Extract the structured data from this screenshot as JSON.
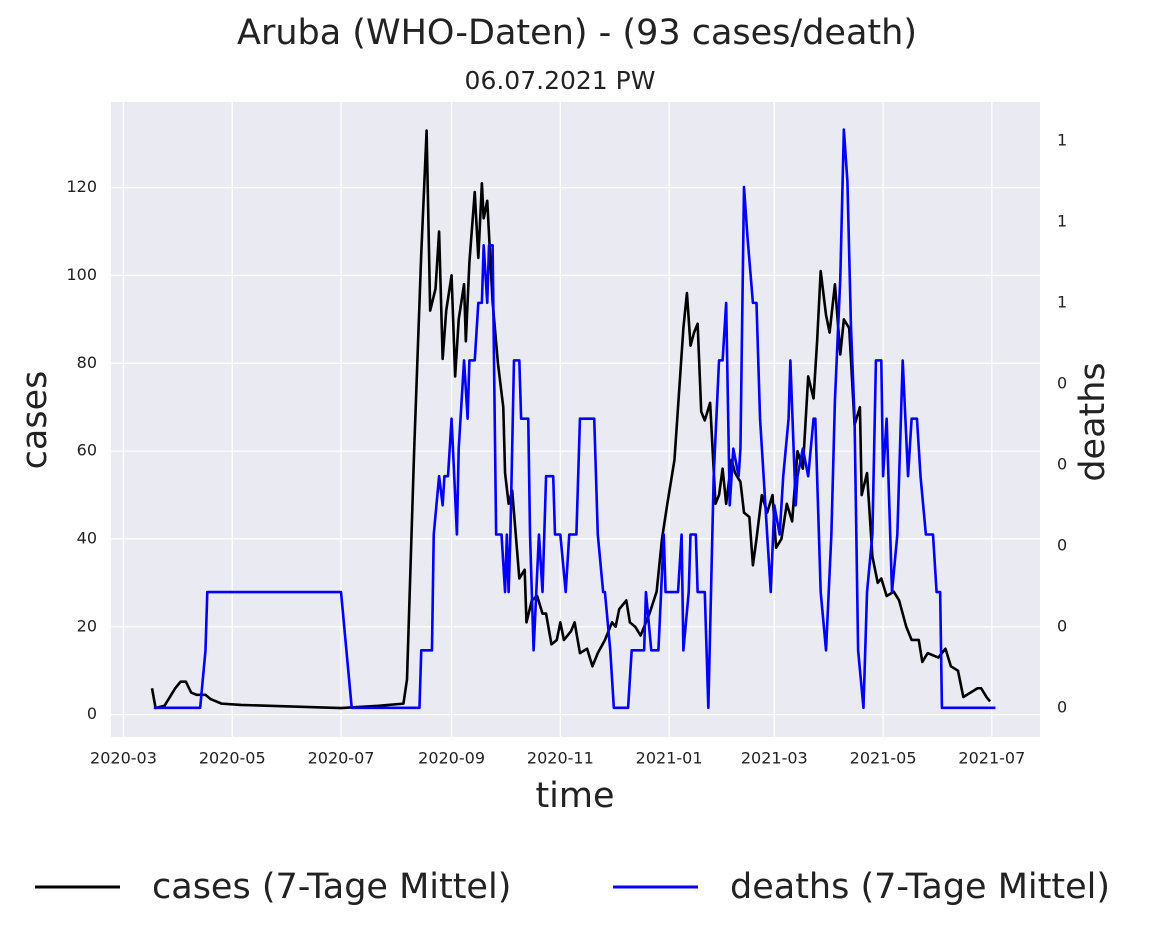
{
  "chart_data": {
    "type": "line",
    "title": "Aruba (WHO-Daten) - (93 cases/death)",
    "subtitle": "06.07.2021 PW",
    "x_label": "time",
    "y_label": "cases",
    "y2_label": "deaths",
    "y2_label_color": "#0000ff",
    "xlim": [
      "2020-02-23",
      "2021-07-28"
    ],
    "xticks": [
      {
        "value": "2020-03-01",
        "label": "2020-03"
      },
      {
        "value": "2020-05-01",
        "label": "2020-05"
      },
      {
        "value": "2020-07-01",
        "label": "2020-07"
      },
      {
        "value": "2020-09-01",
        "label": "2020-09"
      },
      {
        "value": "2020-11-01",
        "label": "2020-11"
      },
      {
        "value": "2021-01-01",
        "label": "2021-01"
      },
      {
        "value": "2021-03-01",
        "label": "2021-03"
      },
      {
        "value": "2021-05-01",
        "label": "2021-05"
      },
      {
        "value": "2021-07-01",
        "label": "2021-07"
      }
    ],
    "ylim": [
      -5.1,
      139.5
    ],
    "yticks": [
      0,
      20,
      40,
      60,
      80,
      100,
      120
    ],
    "y2lim": [
      -0.036,
      0.748
    ],
    "y2ticks": [
      0,
      {
        "value": 0.1,
        "label": "0"
      },
      {
        "value": 0.2,
        "label": "0"
      },
      {
        "value": 0.3,
        "label": "0"
      },
      {
        "value": 0.4,
        "label": "0"
      },
      {
        "value": 0.5,
        "label": "1"
      },
      {
        "value": 0.6,
        "label": "1"
      },
      {
        "value": 0.7,
        "label": "1"
      }
    ],
    "grid": true,
    "legend": "lower center",
    "series": [
      {
        "name": "cases (7-Tage Mittel)",
        "color": "#000000",
        "x": [
          "2020-03-17",
          "2020-03-19",
          "2020-03-24",
          "2020-03-27",
          "2020-03-30",
          "2020-04-02",
          "2020-04-05",
          "2020-04-08",
          "2020-04-11",
          "2020-04-16",
          "2020-04-19",
          "2020-04-25",
          "2020-05-06",
          "2020-07-01",
          "2020-07-22",
          "2020-08-05",
          "2020-08-07",
          "2020-08-11",
          "2020-08-15",
          "2020-08-18",
          "2020-08-20",
          "2020-08-23",
          "2020-08-25",
          "2020-08-27",
          "2020-08-29",
          "2020-09-01",
          "2020-09-03",
          "2020-09-05",
          "2020-09-08",
          "2020-09-09",
          "2020-09-11",
          "2020-09-14",
          "2020-09-16",
          "2020-09-18",
          "2020-09-19",
          "2020-09-21",
          "2020-09-24",
          "2020-09-27",
          "2020-09-30",
          "2020-10-01",
          "2020-10-03",
          "2020-10-05",
          "2020-10-07",
          "2020-10-09",
          "2020-10-12",
          "2020-10-13",
          "2020-10-16",
          "2020-10-19",
          "2020-10-22",
          "2020-10-24",
          "2020-10-27",
          "2020-10-30",
          "2020-11-01",
          "2020-11-03",
          "2020-11-07",
          "2020-11-09",
          "2020-11-12",
          "2020-11-16",
          "2020-11-19",
          "2020-11-22",
          "2020-11-26",
          "2020-11-30",
          "2020-12-02",
          "2020-12-04",
          "2020-12-08",
          "2020-12-10",
          "2020-12-13",
          "2020-12-16",
          "2020-12-19",
          "2020-12-21",
          "2020-12-25",
          "2020-12-28",
          "2020-12-31",
          "2021-01-04",
          "2021-01-06",
          "2021-01-09",
          "2021-01-11",
          "2021-01-13",
          "2021-01-15",
          "2021-01-17",
          "2021-01-19",
          "2021-01-21",
          "2021-01-24",
          "2021-01-27",
          "2021-01-29",
          "2021-01-31",
          "2021-02-02",
          "2021-02-05",
          "2021-02-07",
          "2021-02-10",
          "2021-02-12",
          "2021-02-15",
          "2021-02-17",
          "2021-02-19",
          "2021-02-22",
          "2021-02-25",
          "2021-02-28",
          "2021-03-02",
          "2021-03-05",
          "2021-03-08",
          "2021-03-11",
          "2021-03-14",
          "2021-03-17",
          "2021-03-20",
          "2021-03-23",
          "2021-03-25",
          "2021-03-27",
          "2021-03-30",
          "2021-04-01",
          "2021-04-04",
          "2021-04-07",
          "2021-04-09",
          "2021-04-12",
          "2021-04-15",
          "2021-04-18",
          "2021-04-19",
          "2021-04-22",
          "2021-04-25",
          "2021-04-28",
          "2021-04-30",
          "2021-05-03",
          "2021-05-07",
          "2021-05-10",
          "2021-05-14",
          "2021-05-17",
          "2021-05-21",
          "2021-05-23",
          "2021-05-26",
          "2021-06-01",
          "2021-06-05",
          "2021-06-08",
          "2021-06-12",
          "2021-06-15",
          "2021-06-19",
          "2021-06-23",
          "2021-06-25",
          "2021-06-28",
          "2021-06-30"
        ],
        "values": [
          6,
          1.5,
          2,
          4,
          6,
          7.5,
          7.5,
          5,
          4.5,
          4.5,
          3.5,
          2.5,
          2.2,
          1.5,
          2,
          2.5,
          8,
          60,
          105,
          133,
          92,
          97,
          110,
          81,
          92,
          100,
          77,
          90,
          98,
          85,
          103,
          119,
          104,
          121,
          113,
          117,
          94,
          80,
          70,
          55,
          48,
          51,
          41,
          31,
          33,
          21,
          26,
          27,
          23,
          23,
          16,
          17,
          21,
          17,
          19,
          21,
          14,
          15,
          11,
          14,
          17,
          21,
          20,
          24,
          26,
          21,
          20,
          18,
          21,
          23,
          28,
          40,
          48,
          58,
          70,
          88,
          96,
          84,
          87,
          89,
          69,
          67,
          71,
          48,
          50,
          56,
          48,
          58,
          55,
          53,
          46,
          45,
          34,
          40,
          50,
          46,
          50,
          38,
          40,
          48,
          44,
          60,
          56,
          77,
          72,
          85,
          101,
          91,
          87,
          98,
          82,
          90,
          88,
          66,
          70,
          50,
          55,
          36,
          30,
          31,
          27,
          28,
          26,
          20,
          17,
          17,
          12,
          14,
          13,
          15,
          11,
          10,
          4,
          5,
          6,
          6,
          4,
          3
        ]
      },
      {
        "name": "deaths (7-Tage Mittel)",
        "color": "#0000ff",
        "axis": "y2",
        "x": [
          "2020-03-18",
          "2020-04-13",
          "2020-04-16",
          "2020-04-17",
          "2020-07-01",
          "2020-07-07",
          "2020-08-14",
          "2020-08-15",
          "2020-08-21",
          "2020-08-22",
          "2020-08-25",
          "2020-08-27",
          "2020-08-28",
          "2020-08-30",
          "2020-09-01",
          "2020-09-04",
          "2020-09-05",
          "2020-09-08",
          "2020-09-10",
          "2020-09-11",
          "2020-09-14",
          "2020-09-16",
          "2020-09-18",
          "2020-09-19",
          "2020-09-21",
          "2020-09-22",
          "2020-09-24",
          "2020-09-26",
          "2020-09-29",
          "2020-10-01",
          "2020-10-02",
          "2020-10-03",
          "2020-10-04",
          "2020-10-06",
          "2020-10-09",
          "2020-10-10",
          "2020-10-14",
          "2020-10-15",
          "2020-10-17",
          "2020-10-20",
          "2020-10-22",
          "2020-10-24",
          "2020-10-28",
          "2020-10-29",
          "2020-11-01",
          "2020-11-04",
          "2020-11-06",
          "2020-11-10",
          "2020-11-12",
          "2020-11-20",
          "2020-11-21",
          "2020-11-22",
          "2020-11-25",
          "2020-11-26",
          "2020-11-29",
          "2020-12-01",
          "2020-12-09",
          "2020-12-11",
          "2020-12-18",
          "2020-12-19",
          "2020-12-22",
          "2020-12-26",
          "2020-12-29",
          "2020-12-30",
          "2021-01-06",
          "2021-01-08",
          "2021-01-09",
          "2021-01-12",
          "2021-01-13",
          "2021-01-16",
          "2021-01-17",
          "2021-01-21",
          "2021-01-23",
          "2021-01-26",
          "2021-01-29",
          "2021-01-31",
          "2021-02-02",
          "2021-02-04",
          "2021-02-06",
          "2021-02-09",
          "2021-02-10",
          "2021-02-12",
          "2021-02-14",
          "2021-02-17",
          "2021-02-19",
          "2021-02-21",
          "2021-02-23",
          "2021-02-25",
          "2021-02-27",
          "2021-03-01",
          "2021-03-04",
          "2021-03-06",
          "2021-03-09",
          "2021-03-10",
          "2021-03-13",
          "2021-03-14",
          "2021-03-17",
          "2021-03-20",
          "2021-03-23",
          "2021-03-24",
          "2021-03-27",
          "2021-03-30",
          "2021-04-02",
          "2021-04-04",
          "2021-04-07",
          "2021-04-09",
          "2021-04-11",
          "2021-04-13",
          "2021-04-15",
          "2021-04-17",
          "2021-04-20",
          "2021-04-22",
          "2021-04-25",
          "2021-04-27",
          "2021-04-30",
          "2021-05-01",
          "2021-05-03",
          "2021-05-05",
          "2021-05-06",
          "2021-05-09",
          "2021-05-12",
          "2021-05-15",
          "2021-05-17",
          "2021-05-20",
          "2021-05-22",
          "2021-05-25",
          "2021-05-29",
          "2021-05-31",
          "2021-06-02",
          "2021-06-03",
          "2021-07-03"
        ],
        "values": [
          0,
          0,
          0.071,
          0.143,
          0.143,
          0,
          0,
          0.071,
          0.071,
          0.214,
          0.286,
          0.25,
          0.286,
          0.286,
          0.357,
          0.214,
          0.32,
          0.429,
          0.357,
          0.429,
          0.429,
          0.5,
          0.5,
          0.571,
          0.5,
          0.571,
          0.571,
          0.214,
          0.214,
          0.143,
          0.214,
          0.143,
          0.214,
          0.429,
          0.429,
          0.357,
          0.357,
          0.214,
          0.071,
          0.214,
          0.143,
          0.286,
          0.286,
          0.214,
          0.214,
          0.143,
          0.214,
          0.214,
          0.357,
          0.357,
          0.286,
          0.214,
          0.143,
          0.143,
          0.071,
          0,
          0,
          0.071,
          0.071,
          0.143,
          0.071,
          0.071,
          0.214,
          0.143,
          0.143,
          0.214,
          0.071,
          0.143,
          0.214,
          0.214,
          0.143,
          0.143,
          0,
          0.286,
          0.429,
          0.429,
          0.5,
          0.25,
          0.32,
          0.286,
          0.32,
          0.643,
          0.58,
          0.5,
          0.5,
          0.357,
          0.286,
          0.214,
          0.143,
          0.25,
          0.214,
          0.286,
          0.357,
          0.429,
          0.25,
          0.286,
          0.32,
          0.286,
          0.357,
          0.357,
          0.143,
          0.071,
          0.214,
          0.38,
          0.53,
          0.714,
          0.65,
          0.47,
          0.357,
          0.071,
          0,
          0.143,
          0.214,
          0.429,
          0.429,
          0.286,
          0.357,
          0.214,
          0.143,
          0.214,
          0.429,
          0.286,
          0.357,
          0.357,
          0.286,
          0.214,
          0.214,
          0.143,
          0.143,
          0,
          0
        ]
      }
    ]
  }
}
